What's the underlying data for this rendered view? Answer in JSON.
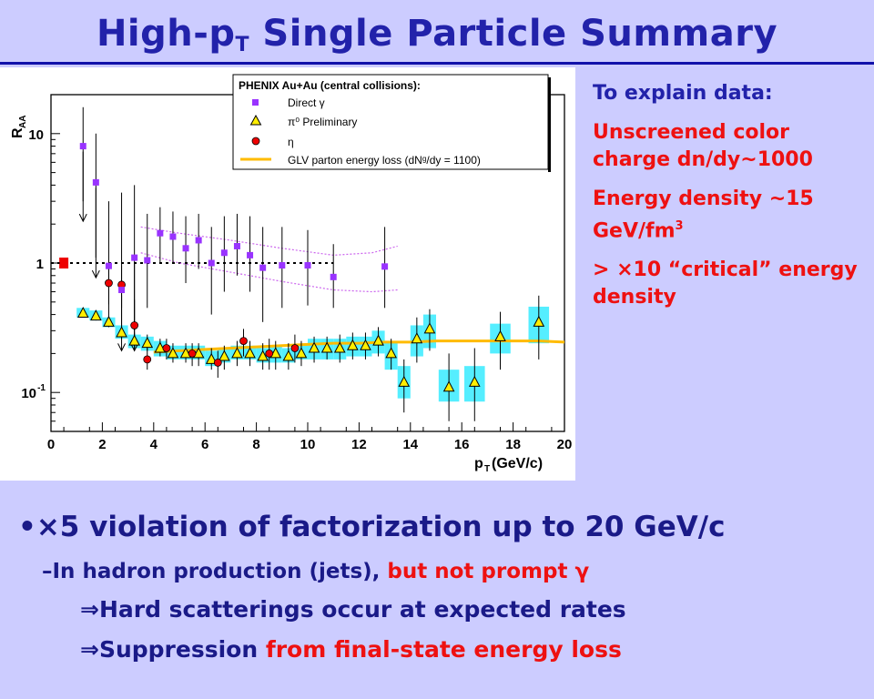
{
  "title": {
    "main": "High-p",
    "sub": "T",
    "rest": " Single Particle Summary"
  },
  "explain": {
    "heading": "To explain data:",
    "item1": "Unscreened color charge dn/dy~1000",
    "item2": "Energy density ~15 GeV/fm",
    "item2_sup": "3",
    "item3": "> ×10 “critical” energy density"
  },
  "bullets": {
    "main_bullet": "•",
    "main": "×5 violation of factorization up to 20 GeV/c",
    "sub_dash": "–",
    "sub_a": "In hadron production (jets), ",
    "sub_b": "but not prompt γ",
    "imp_symbol": "⇒",
    "imp1": "Hard scatterings occur at expected rates",
    "imp2_a": "Suppression ",
    "imp2_b": "from final-state energy loss"
  },
  "colors": {
    "title": "#2222aa",
    "accent_red": "#ee1111",
    "background": "#ccccff",
    "band": "#55eeff",
    "glv": "#ffbb00"
  },
  "chart_data": {
    "type": "scatter",
    "log_y": true,
    "xlim": [
      0,
      20
    ],
    "ylim": [
      0.05,
      20
    ],
    "x_ticks": [
      "0",
      "2",
      "4",
      "6",
      "8",
      "10",
      "12",
      "14",
      "16",
      "18",
      "20"
    ],
    "y_ticks": [
      "10",
      "1",
      "10"
    ],
    "y_tick_exp": "-1",
    "ylabel": "R",
    "ylabel_sub": "AA",
    "xlabel": "p",
    "xlabel_sub": "T",
    "xlabel_unit": " (GeV/c)",
    "legend_title": "PHENIX Au+Au (central collisions):",
    "legend_position": "top-right",
    "legend": [
      "Direct γ",
      "π⁰ Preliminary",
      "η",
      "GLV parton energy loss (dNᵍ/dy = 1100)"
    ],
    "reference_line": 1,
    "series": [
      {
        "name": "Direct γ",
        "marker": "square",
        "color": "#9933ff",
        "x": [
          1.25,
          1.75,
          2.25,
          2.75,
          3.25,
          3.75,
          4.25,
          4.75,
          5.25,
          5.75,
          6.25,
          6.75,
          7.25,
          7.75,
          8.25,
          9.0,
          10.0,
          11.0,
          13.0
        ],
        "y": [
          8.0,
          4.2,
          0.95,
          0.62,
          1.1,
          1.05,
          1.7,
          1.6,
          1.3,
          1.5,
          1.0,
          1.2,
          1.35,
          1.15,
          0.92,
          0.96,
          0.96,
          0.78,
          0.94
        ],
        "err_hi": [
          16,
          10,
          3,
          3.5,
          4,
          2.4,
          2.7,
          2.5,
          2.3,
          2.4,
          1.9,
          2.3,
          2.4,
          2.3,
          1.9,
          1.9,
          1.8,
          1.4,
          1.9
        ],
        "err_lo": [
          3.0,
          1.1,
          0.32,
          0.3,
          0.3,
          0.45,
          1.0,
          1.0,
          0.7,
          0.9,
          0.4,
          0.6,
          0.8,
          0.6,
          0.35,
          0.45,
          0.47,
          0.45,
          0.45
        ]
      },
      {
        "name": "π⁰ Preliminary",
        "marker": "triangle",
        "color": "#ffee00",
        "x": [
          1.25,
          1.75,
          2.25,
          2.75,
          3.25,
          3.75,
          4.25,
          4.75,
          5.25,
          5.75,
          6.25,
          6.75,
          7.25,
          7.75,
          8.25,
          8.75,
          9.25,
          9.75,
          10.25,
          10.75,
          11.25,
          11.75,
          12.25,
          12.75,
          13.25,
          13.75,
          14.25,
          14.75,
          15.5,
          16.5,
          17.5,
          19.0
        ],
        "y": [
          0.41,
          0.39,
          0.35,
          0.29,
          0.25,
          0.24,
          0.22,
          0.2,
          0.2,
          0.2,
          0.18,
          0.19,
          0.2,
          0.2,
          0.19,
          0.2,
          0.19,
          0.2,
          0.22,
          0.22,
          0.22,
          0.23,
          0.23,
          0.25,
          0.2,
          0.12,
          0.26,
          0.31,
          0.11,
          0.12,
          0.27,
          0.35
        ],
        "err_hi": [
          0.44,
          0.42,
          0.38,
          0.33,
          0.29,
          0.28,
          0.26,
          0.24,
          0.24,
          0.24,
          0.22,
          0.23,
          0.25,
          0.25,
          0.24,
          0.25,
          0.24,
          0.25,
          0.27,
          0.27,
          0.28,
          0.29,
          0.29,
          0.32,
          0.26,
          0.18,
          0.38,
          0.44,
          0.2,
          0.22,
          0.42,
          0.56
        ],
        "err_lo": [
          0.38,
          0.36,
          0.32,
          0.26,
          0.22,
          0.21,
          0.19,
          0.17,
          0.17,
          0.16,
          0.15,
          0.15,
          0.16,
          0.16,
          0.15,
          0.15,
          0.15,
          0.16,
          0.17,
          0.18,
          0.17,
          0.18,
          0.18,
          0.19,
          0.15,
          0.07,
          0.17,
          0.21,
          0.06,
          0.06,
          0.15,
          0.18
        ],
        "band_lo": [
          0.38,
          0.36,
          0.32,
          0.26,
          0.22,
          0.21,
          0.19,
          0.18,
          0.18,
          0.18,
          0.16,
          0.17,
          0.18,
          0.18,
          0.17,
          0.17,
          0.17,
          0.18,
          0.18,
          0.18,
          0.18,
          0.19,
          0.19,
          0.2,
          0.15,
          0.09,
          0.19,
          0.22,
          0.085,
          0.085,
          0.2,
          0.24
        ],
        "band_hi": [
          0.45,
          0.43,
          0.38,
          0.33,
          0.28,
          0.27,
          0.25,
          0.23,
          0.23,
          0.23,
          0.21,
          0.22,
          0.23,
          0.23,
          0.22,
          0.23,
          0.22,
          0.23,
          0.26,
          0.26,
          0.26,
          0.27,
          0.27,
          0.3,
          0.25,
          0.16,
          0.33,
          0.4,
          0.15,
          0.16,
          0.34,
          0.46
        ]
      },
      {
        "name": "η",
        "marker": "circle",
        "color": "#ee0000",
        "x": [
          2.25,
          2.75,
          3.25,
          3.75,
          4.5,
          5.5,
          6.5,
          7.5,
          8.5,
          9.5
        ],
        "y": [
          0.7,
          0.68,
          0.33,
          0.18,
          0.22,
          0.2,
          0.17,
          0.25,
          0.2,
          0.22
        ],
        "err_hi": [
          1.0,
          0.95,
          0.52,
          0.22,
          0.26,
          0.24,
          0.21,
          0.31,
          0.26,
          0.28
        ],
        "err_lo": [
          0.48,
          0.45,
          0.21,
          0.15,
          0.18,
          0.16,
          0.13,
          0.19,
          0.15,
          0.17
        ]
      },
      {
        "name": "GLV parton energy loss (dNᵍ/dy = 1100)",
        "marker": "line",
        "color": "#ffbb00",
        "x": [
          4,
          5,
          6,
          7,
          8,
          9,
          10,
          11,
          12,
          13,
          14,
          15,
          16,
          17,
          18,
          19,
          20
        ],
        "y": [
          0.205,
          0.21,
          0.215,
          0.22,
          0.225,
          0.23,
          0.235,
          0.24,
          0.24,
          0.245,
          0.245,
          0.25,
          0.25,
          0.25,
          0.25,
          0.25,
          0.245
        ]
      }
    ],
    "theory_band": {
      "x": [
        3.5,
        5,
        7,
        9,
        11,
        12.5,
        13.5
      ],
      "upper": [
        1.9,
        1.7,
        1.5,
        1.3,
        1.15,
        1.2,
        1.35
      ],
      "lower": [
        1.2,
        1.0,
        0.85,
        0.72,
        0.62,
        0.6,
        0.62
      ]
    },
    "normalization_box": {
      "x": 0.5,
      "y": 1.0
    }
  }
}
